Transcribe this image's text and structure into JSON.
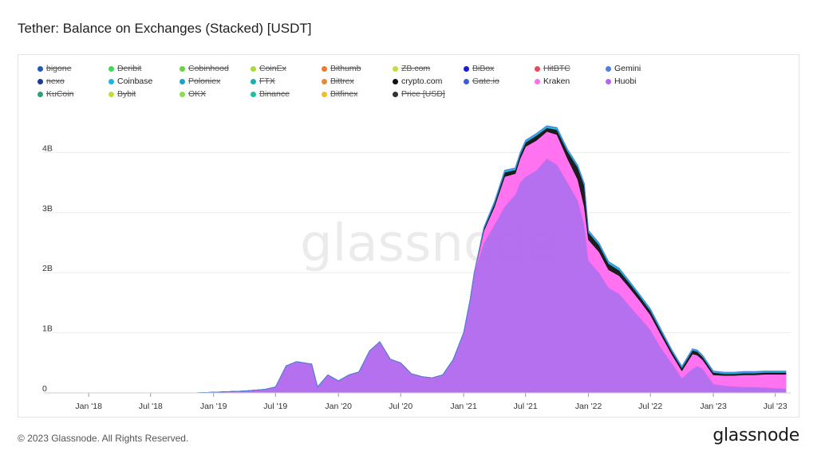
{
  "title": "Tether: Balance on Exchanges (Stacked) [USDT]",
  "footer": {
    "copyright": "© 2023 Glassnode. All Rights Reserved.",
    "logo": "glassnode"
  },
  "watermark": "glassnode",
  "legend": [
    {
      "name": "bigone",
      "color": "#1f5bb5",
      "active": false
    },
    {
      "name": "Deribit",
      "color": "#3ddc55",
      "active": false
    },
    {
      "name": "Cobinhood",
      "color": "#6ad43f",
      "active": false
    },
    {
      "name": "CoinEx",
      "color": "#a8dc3a",
      "active": false
    },
    {
      "name": "Bithumb",
      "color": "#f07b2c",
      "active": false
    },
    {
      "name": "ZB.com",
      "color": "#c9dc3a",
      "active": false
    },
    {
      "name": "BiBox",
      "color": "#1a1ad8",
      "active": false
    },
    {
      "name": "HitBTC",
      "color": "#f0455a",
      "active": false
    },
    {
      "name": "Gemini",
      "color": "#4f7fe0",
      "active": true
    },
    {
      "name": "nexo",
      "color": "#1b3a9a",
      "active": false
    },
    {
      "name": "Coinbase",
      "color": "#19b5e3",
      "active": true
    },
    {
      "name": "Poloniex",
      "color": "#1aa2cc",
      "active": false
    },
    {
      "name": "FTX",
      "color": "#1ab0b0",
      "active": false
    },
    {
      "name": "Bittrex",
      "color": "#e58a3a",
      "active": false
    },
    {
      "name": "crypto.com",
      "color": "#111111",
      "active": true
    },
    {
      "name": "Gate.io",
      "color": "#3a5fd0",
      "active": false
    },
    {
      "name": "Kraken",
      "color": "#ff6cf0",
      "active": true
    },
    {
      "name": "Huobi",
      "color": "#b068ee",
      "active": true
    },
    {
      "name": "KuCoin",
      "color": "#2aa37a",
      "active": false
    },
    {
      "name": "Bybit",
      "color": "#c4dc3a",
      "active": false
    },
    {
      "name": "OKX",
      "color": "#88e04a",
      "active": false
    },
    {
      "name": "Binance",
      "color": "#1fbfa6",
      "active": false
    },
    {
      "name": "Bitfinex",
      "color": "#f0c020",
      "active": false
    },
    {
      "name": "Price [USD]",
      "color": "#333333",
      "active": false
    }
  ],
  "chart_data": {
    "type": "area",
    "stacked": true,
    "title": "Tether: Balance on Exchanges (Stacked) [USDT]",
    "xlabel": "",
    "ylabel": "",
    "x_ticks": [
      "Jan '18",
      "Jul '18",
      "Jan '19",
      "Jul '19",
      "Jan '20",
      "Jul '20",
      "Jan '21",
      "Jul '21",
      "Jan '22",
      "Jul '22",
      "Jan '23",
      "Jul '23"
    ],
    "y_ticks": [
      "0",
      "1B",
      "2B",
      "3B",
      "4B"
    ],
    "ylim": [
      0,
      4800000000
    ],
    "xlim": [
      "2017-11-01",
      "2023-08-15"
    ],
    "y_unit": "USDT",
    "grid": "horizontal",
    "legend_position": "top",
    "x": [
      "2018-11-01",
      "2019-01-01",
      "2019-04-01",
      "2019-06-01",
      "2019-07-01",
      "2019-08-01",
      "2019-09-01",
      "2019-10-15",
      "2019-11-01",
      "2019-12-01",
      "2020-01-01",
      "2020-02-01",
      "2020-03-01",
      "2020-04-01",
      "2020-05-01",
      "2020-06-01",
      "2020-07-01",
      "2020-08-01",
      "2020-09-01",
      "2020-10-01",
      "2020-11-01",
      "2020-12-01",
      "2021-01-01",
      "2021-01-20",
      "2021-02-01",
      "2021-03-01",
      "2021-04-01",
      "2021-05-01",
      "2021-06-01",
      "2021-06-15",
      "2021-07-01",
      "2021-08-01",
      "2021-09-01",
      "2021-10-01",
      "2021-11-01",
      "2021-12-01",
      "2021-12-20",
      "2022-01-01",
      "2022-02-01",
      "2022-03-01",
      "2022-04-01",
      "2022-05-01",
      "2022-06-01",
      "2022-07-01",
      "2022-08-01",
      "2022-09-01",
      "2022-10-01",
      "2022-11-01",
      "2022-11-15",
      "2022-12-01",
      "2023-01-01",
      "2023-02-01",
      "2023-03-01",
      "2023-04-01",
      "2023-05-01",
      "2023-06-01",
      "2023-07-01",
      "2023-08-01"
    ],
    "series": [
      {
        "name": "Huobi",
        "color": "#b068ee",
        "values": [
          0,
          10000000,
          30000000,
          60000000,
          100000000,
          450000000,
          520000000,
          480000000,
          100000000,
          300000000,
          200000000,
          300000000,
          350000000,
          700000000,
          850000000,
          560000000,
          500000000,
          320000000,
          270000000,
          250000000,
          300000000,
          550000000,
          1000000000,
          1550000000,
          2000000000,
          2500000000,
          2800000000,
          3100000000,
          3300000000,
          3500000000,
          3600000000,
          3700000000,
          3900000000,
          3800000000,
          3500000000,
          3200000000,
          2800000000,
          2200000000,
          2000000000,
          1750000000,
          1650000000,
          1450000000,
          1250000000,
          1050000000,
          750000000,
          500000000,
          250000000,
          400000000,
          450000000,
          400000000,
          150000000,
          120000000,
          110000000,
          100000000,
          100000000,
          90000000,
          80000000,
          70000000
        ]
      },
      {
        "name": "Kraken",
        "color": "#ff6cf0",
        "values": [
          0,
          0,
          0,
          0,
          0,
          0,
          0,
          0,
          0,
          0,
          0,
          0,
          0,
          0,
          0,
          0,
          0,
          0,
          0,
          0,
          0,
          0,
          0,
          0,
          0,
          200000000,
          300000000,
          500000000,
          350000000,
          400000000,
          500000000,
          500000000,
          450000000,
          500000000,
          400000000,
          350000000,
          300000000,
          350000000,
          350000000,
          300000000,
          300000000,
          300000000,
          280000000,
          250000000,
          220000000,
          150000000,
          120000000,
          250000000,
          180000000,
          150000000,
          150000000,
          170000000,
          180000000,
          200000000,
          200000000,
          220000000,
          230000000,
          240000000
        ]
      },
      {
        "name": "crypto.com",
        "color": "#111111",
        "values": [
          0,
          0,
          0,
          0,
          0,
          0,
          0,
          0,
          0,
          0,
          0,
          0,
          0,
          0,
          0,
          0,
          0,
          0,
          0,
          0,
          0,
          0,
          0,
          0,
          0,
          30000000,
          50000000,
          70000000,
          60000000,
          60000000,
          70000000,
          80000000,
          60000000,
          80000000,
          120000000,
          200000000,
          350000000,
          120000000,
          110000000,
          100000000,
          90000000,
          80000000,
          70000000,
          70000000,
          60000000,
          50000000,
          50000000,
          60000000,
          60000000,
          50000000,
          40000000,
          30000000,
          30000000,
          30000000,
          30000000,
          30000000,
          30000000,
          30000000
        ]
      },
      {
        "name": "Coinbase",
        "color": "#19b5e3",
        "values": [
          0,
          0,
          0,
          0,
          0,
          0,
          0,
          0,
          0,
          0,
          0,
          0,
          0,
          0,
          0,
          0,
          0,
          0,
          0,
          0,
          0,
          0,
          0,
          0,
          0,
          20000000,
          30000000,
          30000000,
          30000000,
          30000000,
          30000000,
          30000000,
          30000000,
          30000000,
          30000000,
          30000000,
          30000000,
          30000000,
          30000000,
          30000000,
          30000000,
          25000000,
          25000000,
          25000000,
          25000000,
          20000000,
          20000000,
          20000000,
          20000000,
          20000000,
          20000000,
          20000000,
          20000000,
          20000000,
          20000000,
          20000000,
          20000000,
          20000000
        ]
      },
      {
        "name": "Gemini",
        "color": "#4f7fe0",
        "values": [
          0,
          0,
          0,
          0,
          0,
          0,
          0,
          0,
          0,
          0,
          0,
          0,
          0,
          0,
          0,
          0,
          0,
          0,
          0,
          0,
          0,
          0,
          0,
          0,
          0,
          5000000,
          5000000,
          5000000,
          5000000,
          5000000,
          5000000,
          5000000,
          5000000,
          5000000,
          5000000,
          5000000,
          5000000,
          5000000,
          5000000,
          5000000,
          5000000,
          5000000,
          5000000,
          5000000,
          5000000,
          5000000,
          5000000,
          5000000,
          5000000,
          5000000,
          5000000,
          5000000,
          5000000,
          5000000,
          5000000,
          5000000,
          5000000,
          5000000
        ]
      }
    ]
  }
}
